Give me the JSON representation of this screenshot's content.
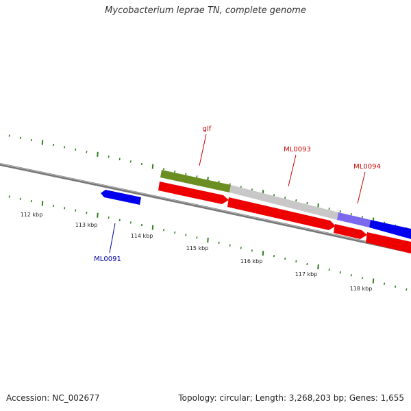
{
  "title": "Mycobacterium leprae TN, complete genome",
  "footer": {
    "accession": "Accession: NC_002677",
    "stats": "Topology: circular; Length: 3,268,203 bp; Genes: 1,655"
  },
  "ticks": [
    "112 kbp",
    "113 kbp",
    "114 kbp",
    "115 kbp",
    "116 kbp",
    "117 kbp",
    "118 kbp"
  ],
  "genes": [
    {
      "name": "glf",
      "color": "#cc0000"
    },
    {
      "name": "ML0093",
      "color": "#cc0000"
    },
    {
      "name": "ML0094",
      "color": "#cc0000"
    },
    {
      "name": "ML0091",
      "color": "#0000aa"
    }
  ],
  "colors": {
    "backbone": "#808080",
    "tick": "#2e7d1e",
    "forward_gene": "#0000ff",
    "reverse_gene": "#ff0000",
    "feature_green": "#6b8e23",
    "feature_gray": "#c0c0c0",
    "feature_purple": "#7b68ee"
  }
}
